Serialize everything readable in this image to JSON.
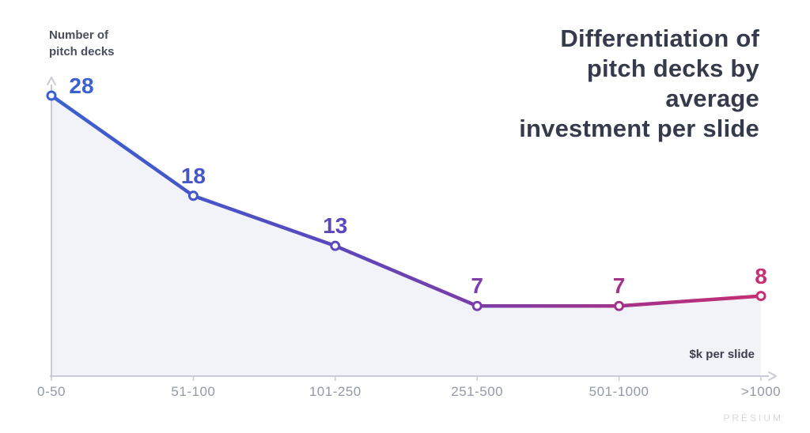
{
  "branding": {
    "watermark": "PRÉSIUM"
  },
  "chart_data": {
    "type": "line",
    "title": "Differentiation of pitch decks by average investment per slide",
    "title_lines": [
      "Differentiation of",
      "pitch decks by",
      "average",
      "investment per slide"
    ],
    "ylabel": "Number of pitch decks",
    "ylabel_lines": [
      "Number of",
      "pitch decks"
    ],
    "xlabel": "$k per slide",
    "categories": [
      "0-50",
      "51-100",
      "101-250",
      "251-500",
      "501-1000",
      ">1000"
    ],
    "values": [
      28,
      18,
      13,
      7,
      7,
      8
    ],
    "point_colors": [
      "#3B60D2",
      "#4656C9",
      "#5C47BD",
      "#7C3CA9",
      "#A23389",
      "#C62D72"
    ],
    "area_fill": "#F2F3F8",
    "axis_color": "#C9CCD6",
    "tick_label_color": "#9499A6",
    "marker": "open-circle",
    "ylim": [
      0,
      28
    ],
    "grid": false,
    "legend": false
  }
}
